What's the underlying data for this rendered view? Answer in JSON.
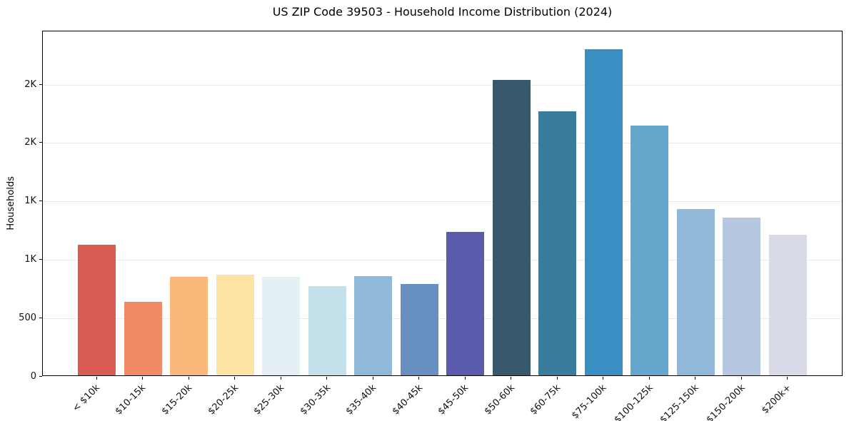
{
  "chart_data": {
    "type": "bar",
    "title": "US ZIP Code 39503 - Household Income Distribution (2024)",
    "xlabel": "",
    "ylabel": "Households",
    "categories": [
      "< $10k",
      "$10-15k",
      "$15-20k",
      "$20-25k",
      "$25-30k",
      "$30-35k",
      "$35-40k",
      "$40-45k",
      "$45-50k",
      "$50-60k",
      "$60-75k",
      "$75-100k",
      "$100-125k",
      "$125-150k",
      "$150-200k",
      "$200k+"
    ],
    "values": [
      1120,
      630,
      845,
      860,
      840,
      765,
      850,
      780,
      1225,
      2530,
      2260,
      2790,
      2140,
      1425,
      1350,
      1205
    ],
    "bar_colors": [
      "#d85c53",
      "#f28a68",
      "#fab87a",
      "#fce3a2",
      "#e4f0f4",
      "#c3e1ea",
      "#90b9d9",
      "#688fc2",
      "#5a5cab",
      "#36596c",
      "#3a7b9b",
      "#398fc2",
      "#64a9cd",
      "#92b8d9",
      "#b6c7e1",
      "#d8dae7"
    ],
    "ylim": [
      0,
      2955
    ],
    "yticks": [
      {
        "value": 0,
        "label": "0"
      },
      {
        "value": 500,
        "label": "500"
      },
      {
        "value": 1000,
        "label": "1K"
      },
      {
        "value": 1500,
        "label": "1K"
      },
      {
        "value": 2000,
        "label": "2K"
      },
      {
        "value": 2500,
        "label": "2K"
      }
    ],
    "grid": "horizontal",
    "legend": "none",
    "grid_color": "#e9e9e9",
    "spine_color": "#000000",
    "background_color": "#ffffff"
  }
}
